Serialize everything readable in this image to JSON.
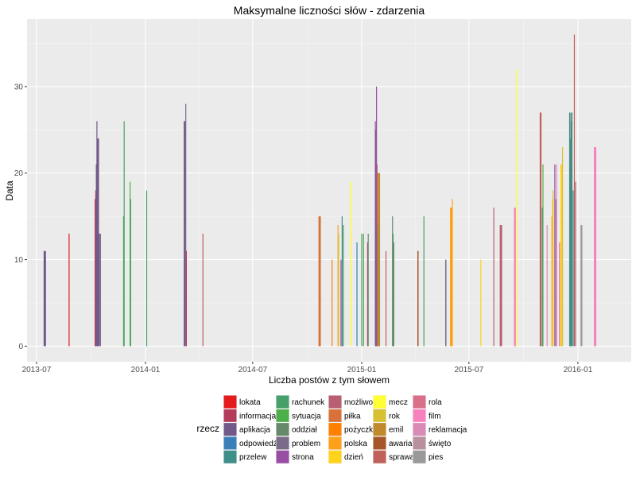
{
  "chart_data": {
    "type": "bar",
    "title": "Maksymalne liczności słów - zdarzenia",
    "xlabel": "Liczba postów z tym słowem",
    "ylabel": "Data",
    "x_axis_type": "date",
    "xlim": [
      "2013-06-15",
      "2016-03-31"
    ],
    "ylim": [
      -1.8,
      37.8
    ],
    "x_ticks": [
      "2013-07",
      "2014-01",
      "2014-07",
      "2015-01",
      "2015-07",
      "2016-01"
    ],
    "x_tick_dates": [
      "2013-07-01",
      "2014-01-01",
      "2014-07-01",
      "2015-01-01",
      "2015-07-01",
      "2016-01-01"
    ],
    "y_ticks": [
      0,
      10,
      20,
      30
    ],
    "grid": true,
    "legend": {
      "title": "rzecz",
      "position": "bottom",
      "columns": 5,
      "items": [
        {
          "name": "lokata",
          "color": "#E41A1C"
        },
        {
          "name": "informacja",
          "color": "#B43C5A"
        },
        {
          "name": "aplikacja",
          "color": "#72598A"
        },
        {
          "name": "odpowiedź",
          "color": "#3B7FB8"
        },
        {
          "name": "przelew",
          "color": "#3E8E8A"
        },
        {
          "name": "rachunek",
          "color": "#46A06A"
        },
        {
          "name": "sytuacja",
          "color": "#4DAF4A"
        },
        {
          "name": "oddział",
          "color": "#66896A"
        },
        {
          "name": "problem",
          "color": "#7A6C88"
        },
        {
          "name": "strona",
          "color": "#984EA3"
        },
        {
          "name": "możliwość",
          "color": "#B85F72"
        },
        {
          "name": "piłka",
          "color": "#D9713A"
        },
        {
          "name": "pożyczka",
          "color": "#FF7F00"
        },
        {
          "name": "polska",
          "color": "#FFA01A"
        },
        {
          "name": "dzień",
          "color": "#FFD21C"
        },
        {
          "name": "mecz",
          "color": "#FFFF33"
        },
        {
          "name": "rok",
          "color": "#D8C030"
        },
        {
          "name": "emil",
          "color": "#C08A2C"
        },
        {
          "name": "awaria",
          "color": "#A65628"
        },
        {
          "name": "sprawa",
          "color": "#C0605A"
        },
        {
          "name": "rola",
          "color": "#D9708A"
        },
        {
          "name": "film",
          "color": "#F781BF"
        },
        {
          "name": "reklamacja",
          "color": "#D98AB6"
        },
        {
          "name": "święto",
          "color": "#B8909E"
        },
        {
          "name": "pies",
          "color": "#999999"
        }
      ]
    },
    "bars": [
      {
        "date": "2013-07-15",
        "value": 11,
        "series": "aplikacja",
        "width_days": 4
      },
      {
        "date": "2013-08-25",
        "value": 13,
        "series": "lokata",
        "width_days": 1
      },
      {
        "date": "2013-10-08",
        "value": 17,
        "series": "informacja",
        "width_days": 1
      },
      {
        "date": "2013-10-09",
        "value": 18,
        "series": "informacja",
        "width_days": 1
      },
      {
        "date": "2013-10-10",
        "value": 21,
        "series": "aplikacja",
        "width_days": 1
      },
      {
        "date": "2013-10-11",
        "value": 26,
        "series": "aplikacja",
        "width_days": 1
      },
      {
        "date": "2013-10-13",
        "value": 24,
        "series": "aplikacja",
        "width_days": 3
      },
      {
        "date": "2013-10-15",
        "value": 13,
        "series": "aplikacja",
        "width_days": 2
      },
      {
        "date": "2013-10-17",
        "value": 13,
        "series": "problem",
        "width_days": 1
      },
      {
        "date": "2013-11-25",
        "value": 15,
        "series": "sytuacja",
        "width_days": 1
      },
      {
        "date": "2013-11-26",
        "value": 26,
        "series": "rachunek",
        "width_days": 1
      },
      {
        "date": "2013-12-06",
        "value": 19,
        "series": "sytuacja",
        "width_days": 1
      },
      {
        "date": "2013-12-07",
        "value": 17,
        "series": "rachunek",
        "width_days": 1
      },
      {
        "date": "2014-01-03",
        "value": 18,
        "series": "rachunek",
        "width_days": 1
      },
      {
        "date": "2014-03-08",
        "value": 26,
        "series": "aplikacja",
        "width_days": 3
      },
      {
        "date": "2014-03-10",
        "value": 28,
        "series": "problem",
        "width_days": 1
      },
      {
        "date": "2014-03-11",
        "value": 11,
        "series": "informacja",
        "width_days": 1
      },
      {
        "date": "2014-04-08",
        "value": 13,
        "series": "sprawa",
        "width_days": 1
      },
      {
        "date": "2014-10-22",
        "value": 15,
        "series": "piłka",
        "width_days": 4
      },
      {
        "date": "2014-11-12",
        "value": 10,
        "series": "pożyczka",
        "width_days": 1
      },
      {
        "date": "2014-11-22",
        "value": 14,
        "series": "polska",
        "width_days": 1
      },
      {
        "date": "2014-11-23",
        "value": 13,
        "series": "rok",
        "width_days": 1
      },
      {
        "date": "2014-11-27",
        "value": 10,
        "series": "strona",
        "width_days": 1
      },
      {
        "date": "2014-11-29",
        "value": 15,
        "series": "przelew",
        "width_days": 1
      },
      {
        "date": "2014-12-01",
        "value": 14,
        "series": "rachunek",
        "width_days": 1
      },
      {
        "date": "2014-12-13",
        "value": 19,
        "series": "mecz",
        "width_days": 2
      },
      {
        "date": "2014-12-24",
        "value": 12,
        "series": "odpowiedź",
        "width_days": 1
      },
      {
        "date": "2015-01-01",
        "value": 13,
        "series": "sytuacja",
        "width_days": 1
      },
      {
        "date": "2015-01-04",
        "value": 13,
        "series": "rachunek",
        "width_days": 1
      },
      {
        "date": "2015-01-11",
        "value": 12,
        "series": "informacja",
        "width_days": 1
      },
      {
        "date": "2015-01-12",
        "value": 13,
        "series": "oddział",
        "width_days": 1
      },
      {
        "date": "2015-01-24",
        "value": 26,
        "series": "strona",
        "width_days": 1
      },
      {
        "date": "2015-01-25",
        "value": 25,
        "series": "aplikacja",
        "width_days": 1
      },
      {
        "date": "2015-01-26",
        "value": 30,
        "series": "strona",
        "width_days": 1
      },
      {
        "date": "2015-01-27",
        "value": 21,
        "series": "możliwość",
        "width_days": 1
      },
      {
        "date": "2015-01-28",
        "value": 14,
        "series": "oddział",
        "width_days": 1
      },
      {
        "date": "2015-01-30",
        "value": 20,
        "series": "emil",
        "width_days": 4
      },
      {
        "date": "2015-02-11",
        "value": 11,
        "series": "sprawa",
        "width_days": 1
      },
      {
        "date": "2015-02-22",
        "value": 15,
        "series": "oddział",
        "width_days": 1
      },
      {
        "date": "2015-02-23",
        "value": 13,
        "series": "rachunek",
        "width_days": 1
      },
      {
        "date": "2015-02-24",
        "value": 12,
        "series": "oddział",
        "width_days": 2
      },
      {
        "date": "2015-04-06",
        "value": 11,
        "series": "awaria",
        "width_days": 2
      },
      {
        "date": "2015-04-16",
        "value": 15,
        "series": "rachunek",
        "width_days": 1
      },
      {
        "date": "2015-05-23",
        "value": 10,
        "series": "problem",
        "width_days": 2
      },
      {
        "date": "2015-06-01",
        "value": 16,
        "series": "polska",
        "width_days": 4
      },
      {
        "date": "2015-06-03",
        "value": 17,
        "series": "polska",
        "width_days": 1
      },
      {
        "date": "2015-07-21",
        "value": 10,
        "series": "dzień",
        "width_days": 1
      },
      {
        "date": "2015-08-12",
        "value": 16,
        "series": "możliwość",
        "width_days": 1
      },
      {
        "date": "2015-08-24",
        "value": 14,
        "series": "możliwość",
        "width_days": 4
      },
      {
        "date": "2015-09-17",
        "value": 16,
        "series": "film",
        "width_days": 4
      },
      {
        "date": "2015-09-19",
        "value": 32,
        "series": "mecz",
        "width_days": 1
      },
      {
        "date": "2015-10-30",
        "value": 27,
        "series": "sprawa",
        "width_days": 3
      },
      {
        "date": "2015-11-02",
        "value": 16,
        "series": "przelew",
        "width_days": 1
      },
      {
        "date": "2015-11-03",
        "value": 21,
        "series": "sytuacja",
        "width_days": 1
      },
      {
        "date": "2015-11-10",
        "value": 14,
        "series": "reklamacja",
        "width_days": 1
      },
      {
        "date": "2015-11-18",
        "value": 15,
        "series": "polska",
        "width_days": 1
      },
      {
        "date": "2015-11-19",
        "value": 17,
        "series": "dzień",
        "width_days": 1
      },
      {
        "date": "2015-11-20",
        "value": 18,
        "series": "rok",
        "width_days": 1
      },
      {
        "date": "2015-11-23",
        "value": 21,
        "series": "strona",
        "width_days": 1
      },
      {
        "date": "2015-11-25",
        "value": 17,
        "series": "możliwość",
        "width_days": 1
      },
      {
        "date": "2015-11-26",
        "value": 21,
        "series": "reklamacja",
        "width_days": 1
      },
      {
        "date": "2015-12-01",
        "value": 12,
        "series": "rola",
        "width_days": 1
      },
      {
        "date": "2015-12-04",
        "value": 21,
        "series": "dzień",
        "width_days": 3
      },
      {
        "date": "2015-12-06",
        "value": 23,
        "series": "rok",
        "width_days": 1
      },
      {
        "date": "2015-12-18",
        "value": 27,
        "series": "przelew",
        "width_days": 1
      },
      {
        "date": "2015-12-19",
        "value": 24,
        "series": "przelew",
        "width_days": 1
      },
      {
        "date": "2015-12-20",
        "value": 27,
        "series": "oddział",
        "width_days": 1
      },
      {
        "date": "2015-12-21",
        "value": 26,
        "series": "przelew",
        "width_days": 1
      },
      {
        "date": "2015-12-22",
        "value": 27,
        "series": "przelew",
        "width_days": 1
      },
      {
        "date": "2015-12-24",
        "value": 18,
        "series": "przelew",
        "width_days": 1
      },
      {
        "date": "2015-12-26",
        "value": 36,
        "series": "sprawa",
        "width_days": 1
      },
      {
        "date": "2015-12-28",
        "value": 19,
        "series": "możliwość",
        "width_days": 1
      },
      {
        "date": "2016-01-07",
        "value": 14,
        "series": "pies",
        "width_days": 3
      },
      {
        "date": "2016-01-30",
        "value": 23,
        "series": "film",
        "width_days": 4
      }
    ]
  }
}
